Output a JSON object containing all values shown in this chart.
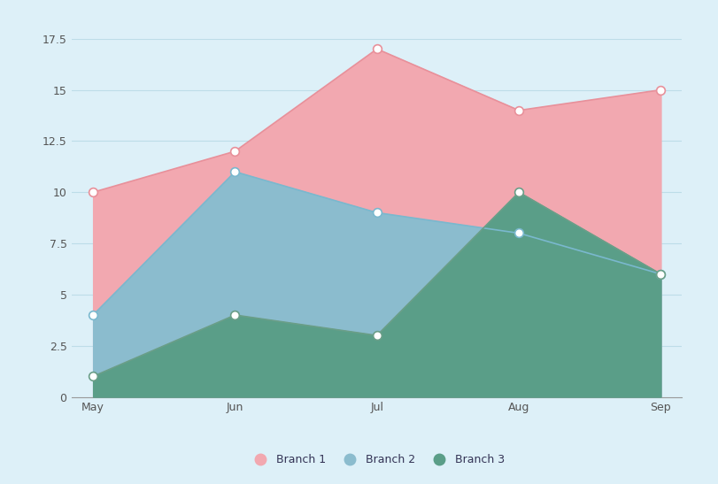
{
  "categories": [
    "May",
    "Jun",
    "Jul",
    "Aug",
    "Sep"
  ],
  "branch1": [
    10,
    12,
    17,
    14,
    15
  ],
  "branch2": [
    4,
    11,
    9,
    8,
    6
  ],
  "branch3": [
    1,
    4,
    3,
    10,
    6
  ],
  "branch1_line_color": "#E8909A",
  "branch2_line_color": "#7AB8CE",
  "branch3_line_color": "#6A9E88",
  "branch1_fill_color": "#F2A8B0",
  "branch2_fill_color": "#8BBCCE",
  "branch3_fill_color": "#5A9E88",
  "background_color": "#DDF0F8",
  "ylim": [
    0,
    17.5
  ],
  "yticks": [
    0,
    2.5,
    5,
    7.5,
    10,
    12.5,
    15,
    17.5
  ],
  "grid_color": "#BDDDE8",
  "legend_labels": [
    "Branch 1",
    "Branch 2",
    "Branch 3"
  ],
  "marker_size": 7,
  "line_width": 1.2
}
